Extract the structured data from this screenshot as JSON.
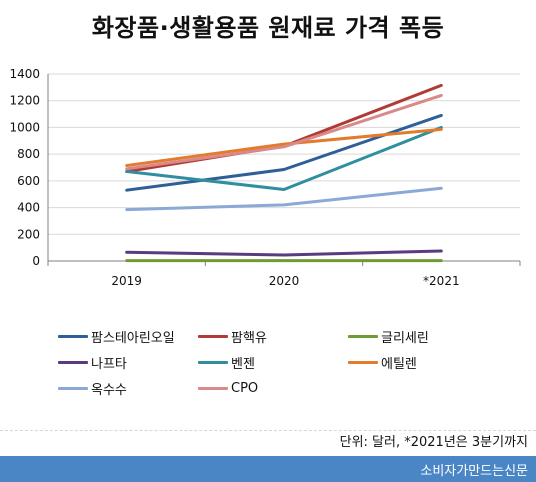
{
  "title": "화장품·생활용품 원재료 가격 폭등",
  "unit_note": "단위: 달러, *2021년은 3분기까지",
  "source": "소비자가만드는신문",
  "colors": {
    "footer": "#4a86c6",
    "grid": "#d9d9d9",
    "axis": "#808080"
  },
  "chart_data": {
    "type": "line",
    "categories": [
      "2019",
      "2020",
      "*2021"
    ],
    "y_ticks": [
      0,
      200,
      400,
      600,
      800,
      1000,
      1200,
      1400
    ],
    "ylim": [
      0,
      1400
    ],
    "grid": true,
    "legend_position": "bottom",
    "series": [
      {
        "name": "팜스테아린오일",
        "color": "#2e5f97",
        "values": [
          530,
          685,
          1090
        ]
      },
      {
        "name": "팜핵유",
        "color": "#b13a36",
        "values": [
          670,
          860,
          1315
        ]
      },
      {
        "name": "글리세린",
        "color": "#6f9c32",
        "values": [
          3,
          3,
          3
        ]
      },
      {
        "name": "나프타",
        "color": "#5a3b80",
        "values": [
          65,
          45,
          75
        ]
      },
      {
        "name": "벤젠",
        "color": "#2f8f9e",
        "values": [
          670,
          535,
          1000
        ]
      },
      {
        "name": "에틸렌",
        "color": "#e37a2c",
        "values": [
          715,
          875,
          985
        ]
      },
      {
        "name": "옥수수",
        "color": "#8aa9d6",
        "values": [
          385,
          420,
          545
        ]
      },
      {
        "name": "CPO",
        "color": "#d78a88",
        "values": [
          690,
          855,
          1240
        ]
      }
    ]
  }
}
